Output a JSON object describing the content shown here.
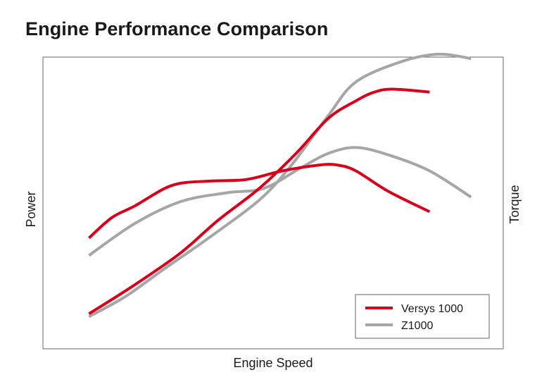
{
  "chart_data": {
    "type": "line",
    "title": "Engine Performance Comparison",
    "xlabel": "Engine Speed",
    "ylabel_left": "Power",
    "ylabel_right": "Torque",
    "ticks": "none",
    "grid": false,
    "legend_position": "bottom-right",
    "xlim": [
      0,
      100
    ],
    "ylim": [
      0,
      100
    ],
    "series": [
      {
        "name": "Versys 1000",
        "metric": "Torque",
        "color": "#d9001b",
        "points": [
          [
            10,
            38
          ],
          [
            15,
            45
          ],
          [
            20,
            49
          ],
          [
            28,
            56
          ],
          [
            36,
            57.5
          ],
          [
            44,
            58
          ],
          [
            52,
            61
          ],
          [
            60,
            63
          ],
          [
            64,
            63
          ],
          [
            68,
            61
          ],
          [
            75,
            54
          ],
          [
            84,
            47
          ]
        ]
      },
      {
        "name": "Versys 1000",
        "metric": "Power",
        "color": "#d9001b",
        "points": [
          [
            10,
            12
          ],
          [
            20,
            22
          ],
          [
            30,
            33
          ],
          [
            38,
            44
          ],
          [
            47,
            55
          ],
          [
            55,
            67
          ],
          [
            62,
            79
          ],
          [
            68,
            85
          ],
          [
            72,
            88
          ],
          [
            76,
            89
          ],
          [
            84,
            88
          ]
        ]
      },
      {
        "name": "Z1000",
        "metric": "Torque",
        "color": "#a6a6a6",
        "points": [
          [
            10,
            32
          ],
          [
            20,
            43
          ],
          [
            30,
            50.5
          ],
          [
            40,
            53.5
          ],
          [
            48,
            55
          ],
          [
            56,
            62
          ],
          [
            62,
            67
          ],
          [
            68,
            69
          ],
          [
            75,
            66.5
          ],
          [
            84,
            61
          ],
          [
            93,
            52
          ]
        ]
      },
      {
        "name": "Z1000",
        "metric": "Power",
        "color": "#a6a6a6",
        "points": [
          [
            10,
            11
          ],
          [
            18,
            18
          ],
          [
            26,
            27
          ],
          [
            36,
            38
          ],
          [
            47,
            51
          ],
          [
            54,
            63
          ],
          [
            62,
            80
          ],
          [
            68,
            91.5
          ],
          [
            78,
            98.5
          ],
          [
            86,
            101
          ],
          [
            93,
            99.5
          ]
        ]
      }
    ],
    "legend": [
      {
        "label": "Versys 1000",
        "color": "#d9001b"
      },
      {
        "label": "Z1000",
        "color": "#a6a6a6"
      }
    ]
  }
}
